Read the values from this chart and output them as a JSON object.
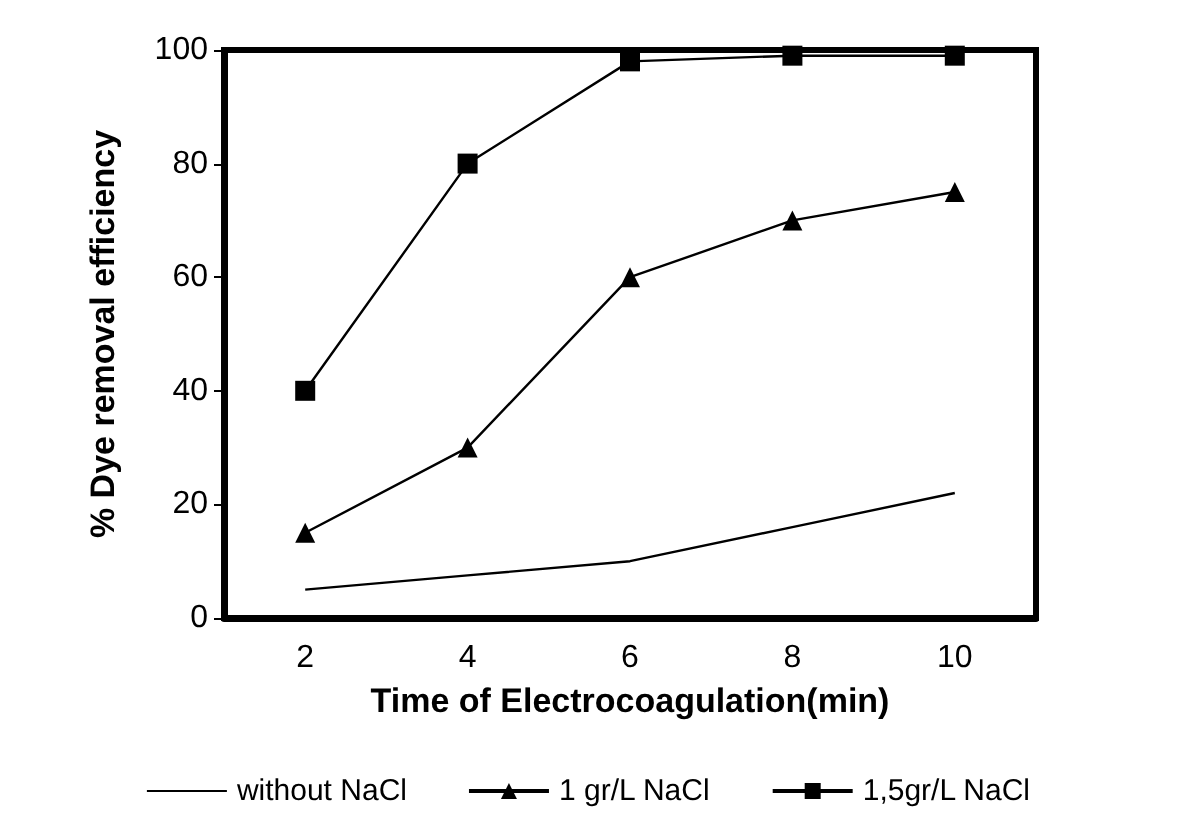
{
  "chart_data": {
    "type": "line",
    "xlabel": "Time of Electrocoagulation(min)",
    "ylabel": "% Dye removal efficiency",
    "categories": [
      "2",
      "4",
      "6",
      "8",
      "10"
    ],
    "series": [
      {
        "name": "without NaCl",
        "color": "#000000",
        "marker": "none",
        "values": [
          5,
          7.5,
          10,
          16,
          22
        ]
      },
      {
        "name": "1 gr/L NaCl",
        "color": "#000000",
        "marker": "triangle",
        "values": [
          15,
          30,
          60,
          70,
          75
        ]
      },
      {
        "name": "1,5gr/L NaCl",
        "color": "#000000",
        "marker": "square",
        "values": [
          40,
          80,
          98,
          99,
          99
        ]
      }
    ],
    "ylim": [
      0,
      100
    ],
    "yticks": [
      0,
      20,
      40,
      60,
      80,
      100
    ],
    "grid": false,
    "legend": "bottom",
    "line_style": "solid"
  }
}
